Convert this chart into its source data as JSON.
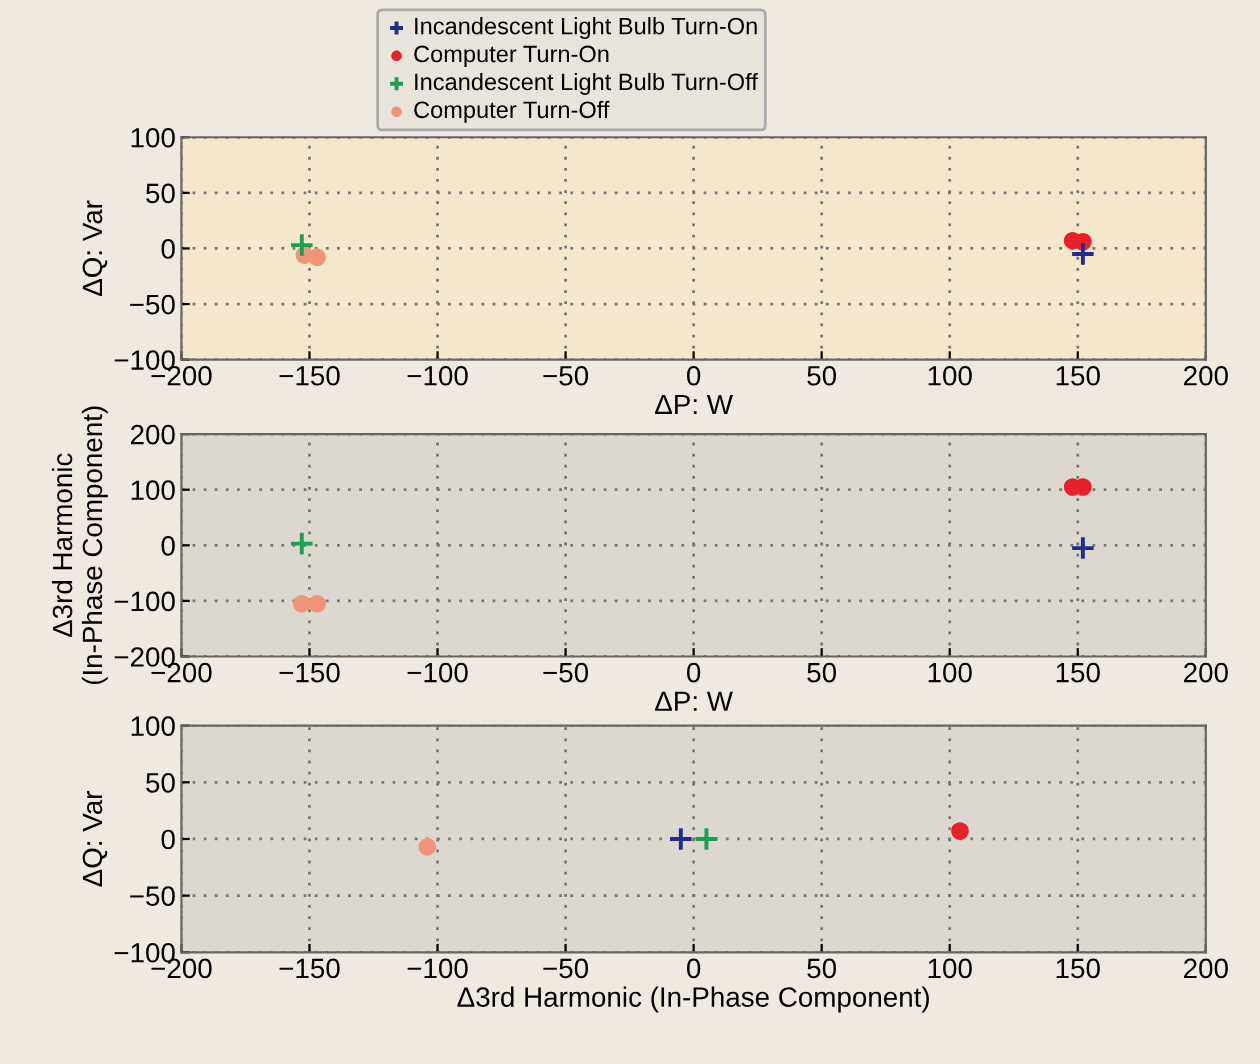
{
  "chart_data": [
    {
      "type": "scatter",
      "xlabel": "ΔP: W",
      "ylabel": "ΔQ: Var",
      "xlim": [
        -200,
        200
      ],
      "ylim": [
        -100,
        100
      ],
      "xticks": [
        -200,
        -150,
        -100,
        -50,
        0,
        50,
        100,
        150,
        200
      ],
      "yticks": [
        -100,
        -50,
        0,
        50,
        100
      ],
      "grid": true,
      "legend": "top",
      "series": [
        {
          "name": "Incandescent Light Bulb Turn-On",
          "color": "#1f2d8f",
          "marker": "cross",
          "x": [
            152
          ],
          "values": [
            -5
          ]
        },
        {
          "name": "Computer Turn-On",
          "color": "#e8202a",
          "marker": "circle",
          "x": [
            148,
            152
          ],
          "values": [
            7,
            6
          ]
        },
        {
          "name": "Incandescent Light Bulb Turn-Off",
          "color": "#1aa050",
          "marker": "cross",
          "x": [
            -153
          ],
          "values": [
            3
          ]
        },
        {
          "name": "Computer Turn-Off",
          "color": "#f0957a",
          "marker": "circle",
          "x": [
            -152,
            -147
          ],
          "values": [
            -6,
            -8
          ]
        }
      ]
    },
    {
      "type": "scatter",
      "xlabel": "ΔP: W",
      "ylabel": "Δ3rd Harmonic\n(In-Phase Component)",
      "xlim": [
        -200,
        200
      ],
      "ylim": [
        -200,
        200
      ],
      "xticks": [
        -200,
        -150,
        -100,
        -50,
        0,
        50,
        100,
        150,
        200
      ],
      "yticks": [
        -200,
        -100,
        0,
        100,
        200
      ],
      "grid": true,
      "series": [
        {
          "color": "#1f2d8f",
          "marker": "cross",
          "x": [
            152
          ],
          "values": [
            -5
          ]
        },
        {
          "color": "#e8202a",
          "marker": "circle",
          "x": [
            148,
            152
          ],
          "values": [
            105,
            105
          ]
        },
        {
          "color": "#1aa050",
          "marker": "cross",
          "x": [
            -153
          ],
          "values": [
            3
          ]
        },
        {
          "color": "#f0957a",
          "marker": "circle",
          "x": [
            -153,
            -147
          ],
          "values": [
            -105,
            -105
          ]
        }
      ]
    },
    {
      "type": "scatter",
      "xlabel": "Δ3rd Harmonic (In-Phase Component)",
      "ylabel": "ΔQ: Var",
      "xlim": [
        -200,
        200
      ],
      "ylim": [
        -100,
        100
      ],
      "xticks": [
        -200,
        -150,
        -100,
        -50,
        0,
        50,
        100,
        150,
        200
      ],
      "yticks": [
        -100,
        -50,
        0,
        50,
        100
      ],
      "grid": true,
      "series": [
        {
          "color": "#1f2d8f",
          "marker": "cross",
          "x": [
            -5
          ],
          "values": [
            0
          ]
        },
        {
          "color": "#e8202a",
          "marker": "circle",
          "x": [
            104
          ],
          "values": [
            7
          ]
        },
        {
          "color": "#1aa050",
          "marker": "cross",
          "x": [
            5
          ],
          "values": [
            0
          ]
        },
        {
          "color": "#f0957a",
          "marker": "circle",
          "x": [
            -104
          ],
          "values": [
            -7
          ]
        }
      ]
    }
  ]
}
